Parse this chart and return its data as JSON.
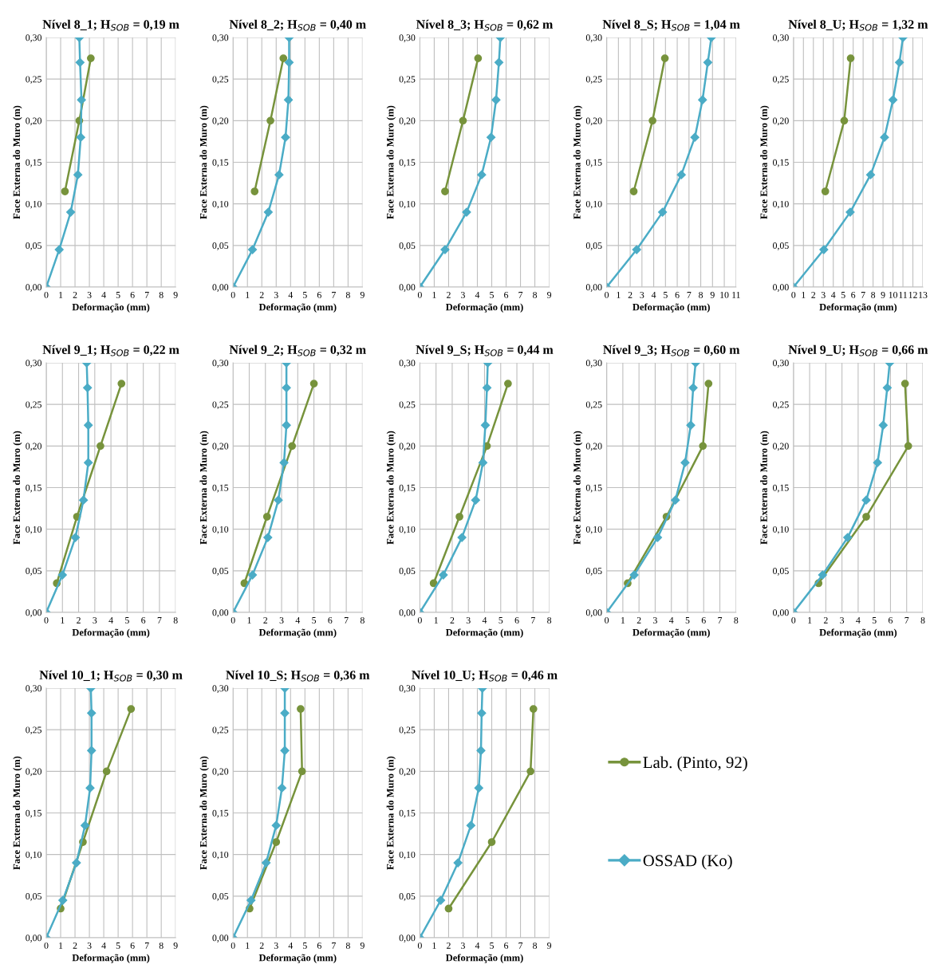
{
  "chart_data": [
    {
      "type": "line",
      "title": "Nível 8_1; H$_{SOB}$ = 0,19 m",
      "xlabel": "Deformação (mm)",
      "ylabel": "Face Externa do Muro (m)",
      "xlim": [
        0,
        9
      ],
      "xticks": [
        0,
        1,
        2,
        3,
        4,
        5,
        6,
        7,
        8,
        9
      ],
      "ylim": [
        0,
        0.3
      ],
      "yticks": [
        {
          "value": 0,
          "label": "0,00"
        },
        {
          "value": 0.05,
          "label": "0,05"
        },
        {
          "value": 0.1,
          "label": "0,10"
        },
        {
          "value": 0.15,
          "label": "0,15"
        },
        {
          "value": 0.2,
          "label": "0,20"
        },
        {
          "value": 0.25,
          "label": "0,25"
        },
        {
          "value": 0.3,
          "label": "0,30"
        }
      ],
      "grid": true,
      "series": [
        {
          "color": "#77933c",
          "marker": "circle",
          "x": [
            1.3,
            2.3,
            3.1
          ],
          "values": [
            0.115,
            0.2,
            0.275
          ]
        },
        {
          "color": "#4bacc6",
          "marker": "diamond",
          "x": [
            0,
            0.9,
            1.7,
            2.2,
            2.4,
            2.45,
            2.35,
            2.3
          ],
          "values": [
            0,
            0.045,
            0.09,
            0.135,
            0.18,
            0.225,
            0.27,
            0.3
          ]
        }
      ]
    },
    {
      "type": "line",
      "title": "Nível 8_2; H$_{SOB}$ = 0,40 m",
      "xlabel": "Deformação (mm)",
      "ylabel": "Face Externa do Muro (m)",
      "xlim": [
        0,
        9
      ],
      "xticks": [
        0,
        1,
        2,
        3,
        4,
        5,
        6,
        7,
        8,
        9
      ],
      "ylim": [
        0,
        0.3
      ],
      "yticks": [
        {
          "value": 0,
          "label": "0,00"
        },
        {
          "value": 0.05,
          "label": "0,05"
        },
        {
          "value": 0.1,
          "label": "0,10"
        },
        {
          "value": 0.15,
          "label": "0,15"
        },
        {
          "value": 0.2,
          "label": "0,20"
        },
        {
          "value": 0.25,
          "label": "0,25"
        },
        {
          "value": 0.3,
          "label": "0,30"
        }
      ],
      "grid": true,
      "series": [
        {
          "color": "#77933c",
          "marker": "circle",
          "x": [
            1.5,
            2.6,
            3.5
          ],
          "values": [
            0.115,
            0.2,
            0.275
          ]
        },
        {
          "color": "#4bacc6",
          "marker": "diamond",
          "x": [
            0,
            1.35,
            2.45,
            3.2,
            3.65,
            3.85,
            3.9,
            3.9
          ],
          "values": [
            0,
            0.045,
            0.09,
            0.135,
            0.18,
            0.225,
            0.27,
            0.3
          ]
        }
      ]
    },
    {
      "type": "line",
      "title": "Nível 8_3; H$_{SOB}$ = 0,62 m",
      "xlabel": "Deformação (mm)",
      "ylabel": "Face Externa do Muro (m)",
      "xlim": [
        0,
        9
      ],
      "xticks": [
        0,
        1,
        2,
        3,
        4,
        5,
        6,
        7,
        8,
        9
      ],
      "ylim": [
        0,
        0.3
      ],
      "yticks": [
        {
          "value": 0,
          "label": "0,00"
        },
        {
          "value": 0.05,
          "label": "0,05"
        },
        {
          "value": 0.1,
          "label": "0,10"
        },
        {
          "value": 0.15,
          "label": "0,15"
        },
        {
          "value": 0.2,
          "label": "0,20"
        },
        {
          "value": 0.25,
          "label": "0,25"
        },
        {
          "value": 0.3,
          "label": "0,30"
        }
      ],
      "grid": true,
      "series": [
        {
          "color": "#77933c",
          "marker": "circle",
          "x": [
            1.75,
            3.0,
            4.05
          ],
          "values": [
            0.115,
            0.2,
            0.275
          ]
        },
        {
          "color": "#4bacc6",
          "marker": "diamond",
          "x": [
            0,
            1.75,
            3.25,
            4.3,
            4.95,
            5.3,
            5.5,
            5.6
          ],
          "values": [
            0,
            0.045,
            0.09,
            0.135,
            0.18,
            0.225,
            0.27,
            0.3
          ]
        }
      ]
    },
    {
      "type": "line",
      "title": "Nível 8_S; H$_{SOB}$ = 1,04 m",
      "xlabel": "Deformação (mm)",
      "ylabel": "Face Externa do Muro (m)",
      "xlim": [
        0,
        11
      ],
      "xticks": [
        0,
        1,
        2,
        3,
        4,
        5,
        6,
        7,
        8,
        9,
        10,
        11
      ],
      "ylim": [
        0,
        0.3
      ],
      "yticks": [
        {
          "value": 0,
          "label": "0,00"
        },
        {
          "value": 0.05,
          "label": "0,05"
        },
        {
          "value": 0.1,
          "label": "0,10"
        },
        {
          "value": 0.15,
          "label": "0,15"
        },
        {
          "value": 0.2,
          "label": "0,20"
        },
        {
          "value": 0.25,
          "label": "0,25"
        },
        {
          "value": 0.3,
          "label": "0,30"
        }
      ],
      "grid": true,
      "series": [
        {
          "color": "#77933c",
          "marker": "circle",
          "x": [
            2.3,
            3.9,
            4.95
          ],
          "values": [
            0.115,
            0.2,
            0.275
          ]
        },
        {
          "color": "#4bacc6",
          "marker": "diamond",
          "x": [
            0,
            2.55,
            4.75,
            6.35,
            7.5,
            8.15,
            8.6,
            8.9
          ],
          "values": [
            0,
            0.045,
            0.09,
            0.135,
            0.18,
            0.225,
            0.27,
            0.3
          ]
        }
      ]
    },
    {
      "type": "line",
      "title": "Nível 8_U; H$_{SOB}$ = 1,32 m",
      "xlabel": "Deformação (mm)",
      "ylabel": "Face Externa do Muro (m)",
      "xlim": [
        0,
        13
      ],
      "xticks": [
        0,
        1,
        2,
        3,
        4,
        5,
        6,
        7,
        8,
        9,
        10,
        11,
        12,
        13
      ],
      "ylim": [
        0,
        0.3
      ],
      "yticks": [
        {
          "value": 0,
          "label": "0,00"
        },
        {
          "value": 0.05,
          "label": "0,05"
        },
        {
          "value": 0.1,
          "label": "0,10"
        },
        {
          "value": 0.15,
          "label": "0,15"
        },
        {
          "value": 0.2,
          "label": "0,20"
        },
        {
          "value": 0.25,
          "label": "0,25"
        },
        {
          "value": 0.3,
          "label": "0,30"
        }
      ],
      "grid": true,
      "series": [
        {
          "color": "#77933c",
          "marker": "circle",
          "x": [
            3.2,
            5.1,
            5.75
          ],
          "values": [
            0.115,
            0.2,
            0.275
          ]
        },
        {
          "color": "#4bacc6",
          "marker": "diamond",
          "x": [
            0,
            3.05,
            5.7,
            7.75,
            9.15,
            10.0,
            10.65,
            11.0
          ],
          "values": [
            0,
            0.045,
            0.09,
            0.135,
            0.18,
            0.225,
            0.27,
            0.3
          ]
        }
      ]
    },
    {
      "type": "line",
      "title": "Nível 9_1; H$_{SOB}$ = 0,22 m",
      "xlabel": "Deformação (mm)",
      "ylabel": "Face Externa do Muro (m)",
      "xlim": [
        0,
        8
      ],
      "xticks": [
        0,
        1,
        2,
        3,
        4,
        5,
        6,
        7,
        8
      ],
      "ylim": [
        0,
        0.3
      ],
      "yticks": [
        {
          "value": 0,
          "label": "0,00"
        },
        {
          "value": 0.05,
          "label": "0,05"
        },
        {
          "value": 0.1,
          "label": "0,10"
        },
        {
          "value": 0.15,
          "label": "0,15"
        },
        {
          "value": 0.2,
          "label": "0,20"
        },
        {
          "value": 0.25,
          "label": "0,25"
        },
        {
          "value": 0.3,
          "label": "0,30"
        }
      ],
      "grid": true,
      "series": [
        {
          "color": "#77933c",
          "marker": "circle",
          "x": [
            0.65,
            1.9,
            3.35,
            4.65
          ],
          "values": [
            0.035,
            0.115,
            0.2,
            0.275
          ]
        },
        {
          "color": "#4bacc6",
          "marker": "diamond",
          "x": [
            0,
            1.0,
            1.8,
            2.3,
            2.6,
            2.6,
            2.55,
            2.5
          ],
          "values": [
            0,
            0.045,
            0.09,
            0.135,
            0.18,
            0.225,
            0.27,
            0.3
          ]
        }
      ]
    },
    {
      "type": "line",
      "title": "Nível 9_2; H$_{SOB}$ = 0,32 m",
      "xlabel": "Deformação (mm)",
      "ylabel": "Face Externa do Muro (m)",
      "xlim": [
        0,
        8
      ],
      "xticks": [
        0,
        1,
        2,
        3,
        4,
        5,
        6,
        7,
        8
      ],
      "ylim": [
        0,
        0.3
      ],
      "yticks": [
        {
          "value": 0,
          "label": "0,00"
        },
        {
          "value": 0.05,
          "label": "0,05"
        },
        {
          "value": 0.1,
          "label": "0,10"
        },
        {
          "value": 0.15,
          "label": "0,15"
        },
        {
          "value": 0.2,
          "label": "0,20"
        },
        {
          "value": 0.25,
          "label": "0,25"
        },
        {
          "value": 0.3,
          "label": "0,30"
        }
      ],
      "grid": true,
      "series": [
        {
          "color": "#77933c",
          "marker": "circle",
          "x": [
            0.7,
            2.1,
            3.65,
            5.0
          ],
          "values": [
            0.035,
            0.115,
            0.2,
            0.275
          ]
        },
        {
          "color": "#4bacc6",
          "marker": "diamond",
          "x": [
            0,
            1.2,
            2.15,
            2.8,
            3.15,
            3.3,
            3.3,
            3.3
          ],
          "values": [
            0,
            0.045,
            0.09,
            0.135,
            0.18,
            0.225,
            0.27,
            0.3
          ]
        }
      ]
    },
    {
      "type": "line",
      "title": "Nível 9_S; H$_{SOB}$ = 0,44 m",
      "xlabel": "Deformação (mm)",
      "ylabel": "Face Externa do Muro (m)",
      "xlim": [
        0,
        8
      ],
      "xticks": [
        0,
        1,
        2,
        3,
        4,
        5,
        6,
        7,
        8
      ],
      "ylim": [
        0,
        0.3
      ],
      "yticks": [
        {
          "value": 0,
          "label": "0,00"
        },
        {
          "value": 0.05,
          "label": "0,05"
        },
        {
          "value": 0.1,
          "label": "0,10"
        },
        {
          "value": 0.15,
          "label": "0,15"
        },
        {
          "value": 0.2,
          "label": "0,20"
        },
        {
          "value": 0.25,
          "label": "0,25"
        },
        {
          "value": 0.3,
          "label": "0,30"
        }
      ],
      "grid": true,
      "series": [
        {
          "color": "#77933c",
          "marker": "circle",
          "x": [
            0.85,
            2.45,
            4.15,
            5.45
          ],
          "values": [
            0.035,
            0.115,
            0.2,
            0.275
          ]
        },
        {
          "color": "#4bacc6",
          "marker": "diamond",
          "x": [
            0,
            1.45,
            2.6,
            3.45,
            3.9,
            4.05,
            4.15,
            4.2
          ],
          "values": [
            0,
            0.045,
            0.09,
            0.135,
            0.18,
            0.225,
            0.27,
            0.3
          ]
        }
      ]
    },
    {
      "type": "line",
      "title": "Nível 9_3; H$_{SOB}$ = 0,60 m",
      "xlabel": "Deformação (mm)",
      "ylabel": "Face Externa do Muro (m)",
      "xlim": [
        0,
        8
      ],
      "xticks": [
        0,
        1,
        2,
        3,
        4,
        5,
        6,
        7,
        8
      ],
      "ylim": [
        0,
        0.3
      ],
      "yticks": [
        {
          "value": 0,
          "label": "0,00"
        },
        {
          "value": 0.05,
          "label": "0,05"
        },
        {
          "value": 0.1,
          "label": "0,10"
        },
        {
          "value": 0.15,
          "label": "0,15"
        },
        {
          "value": 0.2,
          "label": "0,20"
        },
        {
          "value": 0.25,
          "label": "0,25"
        },
        {
          "value": 0.3,
          "label": "0,30"
        }
      ],
      "grid": true,
      "series": [
        {
          "color": "#77933c",
          "marker": "circle",
          "x": [
            1.3,
            3.7,
            5.95,
            6.3
          ],
          "values": [
            0.035,
            0.115,
            0.2,
            0.275
          ]
        },
        {
          "color": "#4bacc6",
          "marker": "diamond",
          "x": [
            0,
            1.7,
            3.15,
            4.25,
            4.85,
            5.2,
            5.35,
            5.5
          ],
          "values": [
            0,
            0.045,
            0.09,
            0.135,
            0.18,
            0.225,
            0.27,
            0.3
          ]
        }
      ]
    },
    {
      "type": "line",
      "title": "Nível 9_U; H$_{SOB}$ = 0,66 m",
      "xlabel": "Deformação (mm)",
      "ylabel": "Face Externa do Muro (m)",
      "xlim": [
        0,
        8
      ],
      "xticks": [
        0,
        1,
        2,
        3,
        4,
        5,
        6,
        7,
        8
      ],
      "ylim": [
        0,
        0.3
      ],
      "yticks": [
        {
          "value": 0,
          "label": "0,00"
        },
        {
          "value": 0.05,
          "label": "0,05"
        },
        {
          "value": 0.1,
          "label": "0,10"
        },
        {
          "value": 0.15,
          "label": "0,15"
        },
        {
          "value": 0.2,
          "label": "0,20"
        },
        {
          "value": 0.25,
          "label": "0,25"
        },
        {
          "value": 0.3,
          "label": "0,30"
        }
      ],
      "grid": true,
      "series": [
        {
          "color": "#77933c",
          "marker": "circle",
          "x": [
            1.55,
            4.5,
            7.1,
            6.9
          ],
          "values": [
            0.035,
            0.115,
            0.2,
            0.275
          ]
        },
        {
          "color": "#4bacc6",
          "marker": "diamond",
          "x": [
            0,
            1.8,
            3.35,
            4.5,
            5.2,
            5.55,
            5.8,
            5.95
          ],
          "values": [
            0,
            0.045,
            0.09,
            0.135,
            0.18,
            0.225,
            0.27,
            0.3
          ]
        }
      ]
    },
    {
      "type": "line",
      "title": "Nível 10_1; H$_{SOB}$ = 0,30 m",
      "xlabel": "Deformação (mm)",
      "ylabel": "Face Externa do Muro (m)",
      "xlim": [
        0,
        9
      ],
      "xticks": [
        0,
        1,
        2,
        3,
        4,
        5,
        6,
        7,
        8,
        9
      ],
      "ylim": [
        0,
        0.3
      ],
      "yticks": [
        {
          "value": 0,
          "label": "0,00"
        },
        {
          "value": 0.05,
          "label": "0,05"
        },
        {
          "value": 0.1,
          "label": "0,10"
        },
        {
          "value": 0.15,
          "label": "0,15"
        },
        {
          "value": 0.2,
          "label": "0,20"
        },
        {
          "value": 0.25,
          "label": "0,25"
        },
        {
          "value": 0.3,
          "label": "0,30"
        }
      ],
      "grid": true,
      "series": [
        {
          "color": "#77933c",
          "marker": "circle",
          "x": [
            1.0,
            2.55,
            4.2,
            5.9
          ],
          "values": [
            0.035,
            0.115,
            0.2,
            0.275
          ]
        },
        {
          "color": "#4bacc6",
          "marker": "diamond",
          "x": [
            0,
            1.15,
            2.1,
            2.7,
            3.05,
            3.15,
            3.15,
            3.1
          ],
          "values": [
            0,
            0.045,
            0.09,
            0.135,
            0.18,
            0.225,
            0.27,
            0.3
          ]
        }
      ]
    },
    {
      "type": "line",
      "title": "Nível 10_S; H$_{SOB}$ = 0,36 m",
      "xlabel": "Deformação (mm)",
      "ylabel": "Face Externa do Muro (m)",
      "xlim": [
        0,
        9
      ],
      "xticks": [
        0,
        1,
        2,
        3,
        4,
        5,
        6,
        7,
        8,
        9
      ],
      "ylim": [
        0,
        0.3
      ],
      "yticks": [
        {
          "value": 0,
          "label": "0,00"
        },
        {
          "value": 0.05,
          "label": "0,05"
        },
        {
          "value": 0.1,
          "label": "0,10"
        },
        {
          "value": 0.15,
          "label": "0,15"
        },
        {
          "value": 0.2,
          "label": "0,20"
        },
        {
          "value": 0.25,
          "label": "0,25"
        },
        {
          "value": 0.3,
          "label": "0,30"
        }
      ],
      "grid": true,
      "series": [
        {
          "color": "#77933c",
          "marker": "circle",
          "x": [
            1.15,
            3.0,
            4.8,
            4.7
          ],
          "values": [
            0.035,
            0.115,
            0.2,
            0.275
          ]
        },
        {
          "color": "#4bacc6",
          "marker": "diamond",
          "x": [
            0,
            1.25,
            2.3,
            3.0,
            3.4,
            3.6,
            3.6,
            3.6
          ],
          "values": [
            0,
            0.045,
            0.09,
            0.135,
            0.18,
            0.225,
            0.27,
            0.3
          ]
        }
      ]
    },
    {
      "type": "line",
      "title": "Nível 10_U; H$_{SOB}$ = 0,46 m",
      "xlabel": "Deformação (mm)",
      "ylabel": "Face Externa do Muro (m)",
      "xlim": [
        0,
        9
      ],
      "xticks": [
        0,
        1,
        2,
        3,
        4,
        5,
        6,
        7,
        8,
        9
      ],
      "ylim": [
        0,
        0.3
      ],
      "yticks": [
        {
          "value": 0,
          "label": "0,00"
        },
        {
          "value": 0.05,
          "label": "0,05"
        },
        {
          "value": 0.1,
          "label": "0,10"
        },
        {
          "value": 0.15,
          "label": "0,15"
        },
        {
          "value": 0.2,
          "label": "0,20"
        },
        {
          "value": 0.25,
          "label": "0,25"
        },
        {
          "value": 0.3,
          "label": "0,30"
        }
      ],
      "grid": true,
      "legend": "right",
      "series": [
        {
          "name": "Lab. (Pinto, 92)",
          "color": "#77933c",
          "marker": "circle",
          "x": [
            2.0,
            5.0,
            7.7,
            7.9
          ],
          "values": [
            0.035,
            0.115,
            0.2,
            0.275
          ]
        },
        {
          "name": "OSSAD (Ko)",
          "color": "#4bacc6",
          "marker": "diamond",
          "x": [
            0,
            1.45,
            2.65,
            3.55,
            4.1,
            4.25,
            4.3,
            4.35
          ],
          "values": [
            0,
            0.045,
            0.09,
            0.135,
            0.18,
            0.225,
            0.27,
            0.3
          ]
        }
      ]
    }
  ]
}
